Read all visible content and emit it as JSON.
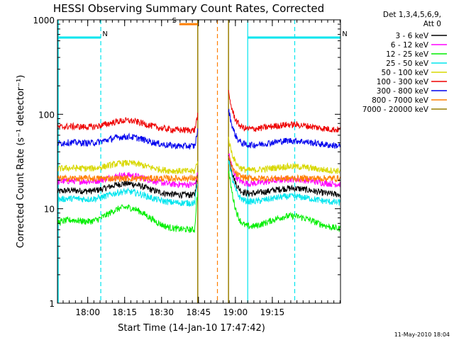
{
  "chart_data": {
    "type": "line",
    "title": "HESSI Observing Summary Count Rates, Corrected",
    "xlabel": "Start Time (14-Jan-10 17:47:42)",
    "ylabel": "Corrected Count Rate (s⁻¹ detector⁻¹)",
    "y_scale": "log",
    "ylim": [
      1,
      1000
    ],
    "xlim_minutes": [
      0,
      115
    ],
    "x_ticks": [
      {
        "label": "18:00",
        "minute": 12.3
      },
      {
        "label": "18:15",
        "minute": 27.3
      },
      {
        "label": "18:30",
        "minute": 42.3
      },
      {
        "label": "18:45",
        "minute": 57.3
      },
      {
        "label": "19:00",
        "minute": 72.3
      },
      {
        "label": "19:15",
        "minute": 87.3
      }
    ],
    "y_ticks": [
      {
        "label": "1000",
        "value": 1000
      },
      {
        "label": "100",
        "value": 100
      },
      {
        "label": "10",
        "value": 10
      },
      {
        "label": "1",
        "value": 1
      }
    ],
    "legend_header": [
      "Det 1,3,4,5,6,9,",
      "Att 0"
    ],
    "legend_position": "right",
    "gap_start_minute": 57.0,
    "gap_end_minute": 69.5,
    "series": [
      {
        "name": "3 - 6 keV",
        "color": "#000000",
        "base": 14,
        "hump": 0.32,
        "spike": 1.6
      },
      {
        "name": "6 - 12 keV",
        "color": "#ff00ff",
        "base": 18,
        "hump": 0.26,
        "spike": 1.3
      },
      {
        "name": "12 - 25 keV",
        "color": "#00ee00",
        "base": 6,
        "hump": 0.72,
        "spike": 2.5
      },
      {
        "name": "25 - 50 keV",
        "color": "#00e5ee",
        "base": 11.5,
        "hump": 0.32,
        "spike": 1.7
      },
      {
        "name": "50 - 100 keV",
        "color": "#d8d800",
        "base": 25,
        "hump": 0.22,
        "spike": 1.3
      },
      {
        "name": "100 - 300 keV",
        "color": "#ee0000",
        "base": 68,
        "hump": 0.26,
        "spike": 1.45
      },
      {
        "name": "300 - 800 keV",
        "color": "#0000ee",
        "base": 46,
        "hump": 0.26,
        "spike": 1.45
      },
      {
        "name": "800 - 7000 keV",
        "color": "#ff7f00",
        "base": 21,
        "hump": 0.0,
        "spike": 1.0
      },
      {
        "name": "7000 - 20000 keV",
        "color": "#9a7f00",
        "base": 0,
        "hump": 0,
        "spike": 0
      }
    ],
    "annotations": [
      {
        "text": "N",
        "color": "#00e5ee",
        "bar_from_minute": 0,
        "bar_to_minute": 17.6,
        "bar_value": 650
      },
      {
        "text": "S",
        "color": "#ff7f00",
        "bar_from_minute": 49.5,
        "bar_to_minute": 57.0,
        "bar_value": 900
      },
      {
        "text": "N",
        "color": "#00e5ee",
        "bar_from_minute": 77.3,
        "bar_to_minute": 115,
        "bar_value": 650
      }
    ],
    "markers": [
      {
        "kind": "saa-boundary",
        "color": "#00e5ee",
        "style": "dashed",
        "minute": 17.6
      },
      {
        "kind": "saa-boundary",
        "color": "#00e5ee",
        "style": "solid",
        "minute": 77.3
      },
      {
        "kind": "saa-boundary",
        "color": "#00e5ee",
        "style": "dashed",
        "minute": 96.4
      },
      {
        "kind": "night-boundary",
        "color": "#ff7f00",
        "style": "dashed",
        "minute": 65.0
      }
    ]
  },
  "footer": {
    "date_stamp": "11-May-2010 18:04"
  }
}
